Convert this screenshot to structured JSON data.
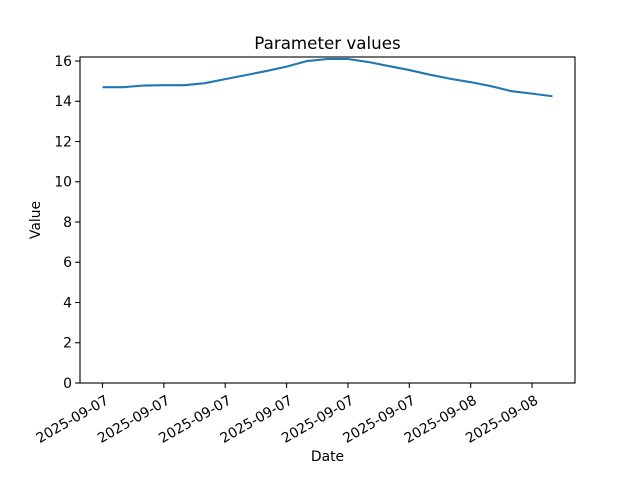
{
  "chart_data": {
    "type": "line",
    "title": "Parameter values",
    "xlabel": "Date",
    "ylabel": "Value",
    "grid": false,
    "legend": "none",
    "background": "#ffffff",
    "frame_color": "#000000",
    "xlim": [
      -1.1,
      23.1
    ],
    "ylim": [
      0,
      16.2
    ],
    "y_ticks": [
      0,
      2,
      4,
      6,
      8,
      10,
      12,
      14,
      16
    ],
    "x_ticks": {
      "positions": [
        0,
        3,
        6,
        9,
        12,
        15,
        18,
        21
      ],
      "labels": [
        "2025-09-07",
        "2025-09-07",
        "2025-09-07",
        "2025-09-07",
        "2025-09-07",
        "2025-09-07",
        "2025-09-08",
        "2025-09-08"
      ],
      "rotation_deg": -30
    },
    "series": [
      {
        "name": "parameter-values-line",
        "color": "#1f77b4",
        "x": [
          0,
          1,
          2,
          3,
          4,
          5,
          6,
          7,
          8,
          9,
          10,
          11,
          12,
          13,
          14,
          15,
          16,
          17,
          18,
          19,
          20,
          21,
          22
        ],
        "values": [
          14.7,
          14.7,
          14.78,
          14.8,
          14.8,
          14.9,
          15.1,
          15.3,
          15.5,
          15.72,
          16.0,
          16.1,
          16.1,
          15.95,
          15.75,
          15.55,
          15.32,
          15.12,
          14.95,
          14.75,
          14.5,
          14.38,
          14.25
        ]
      }
    ]
  }
}
